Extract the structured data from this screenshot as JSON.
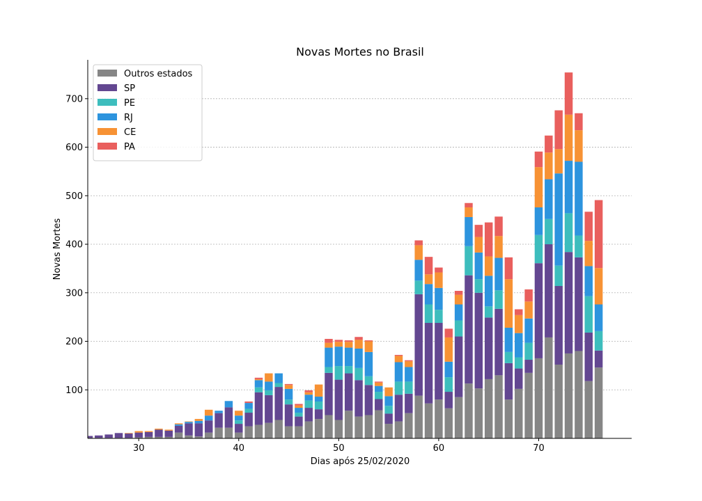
{
  "chart_data": {
    "type": "bar",
    "stacked": true,
    "title": "Novas Mortes no Brasil",
    "xlabel": "Dias após 25/02/2020",
    "ylabel": "Novas Mortes",
    "xlim": [
      24.9,
      79.3
    ],
    "ylim": [
      0,
      780
    ],
    "xticks": [
      30,
      40,
      50,
      60,
      70
    ],
    "yticks": [
      100,
      200,
      300,
      400,
      500,
      600,
      700
    ],
    "grid": "y",
    "legend_position": "top-left",
    "x": [
      25,
      26,
      27,
      28,
      29,
      30,
      31,
      32,
      33,
      34,
      35,
      36,
      37,
      38,
      39,
      40,
      41,
      42,
      43,
      44,
      45,
      46,
      47,
      48,
      49,
      50,
      51,
      52,
      53,
      54,
      55,
      56,
      57,
      58,
      59,
      60,
      61,
      62,
      63,
      64,
      65,
      66,
      67,
      68,
      69,
      70,
      71,
      72,
      73,
      74,
      75,
      76
    ],
    "series": [
      {
        "name": "Outros estados",
        "color": "#868686",
        "values": [
          1,
          1,
          1,
          1,
          1,
          2,
          3,
          3,
          3,
          12,
          6,
          4,
          12,
          22,
          22,
          12,
          25,
          28,
          32,
          38,
          25,
          25,
          35,
          40,
          48,
          38,
          57,
          45,
          48,
          58,
          30,
          35,
          52,
          88,
          72,
          80,
          62,
          85,
          113,
          103,
          122,
          130,
          80,
          102,
          135,
          165,
          208,
          152,
          175,
          180,
          118,
          146
        ]
      },
      {
        "name": "SP",
        "color": "#634791",
        "values": [
          4,
          5,
          7,
          10,
          9,
          10,
          10,
          15,
          13,
          14,
          25,
          27,
          25,
          30,
          42,
          18,
          28,
          67,
          57,
          68,
          45,
          20,
          28,
          20,
          87,
          83,
          77,
          75,
          62,
          23,
          21,
          55,
          40,
          209,
          166,
          158,
          34,
          125,
          223,
          197,
          127,
          137,
          75,
          42,
          27,
          196,
          192,
          162,
          209,
          193,
          100,
          35
        ]
      },
      {
        "name": "PE",
        "color": "#3dbdbd",
        "values": [
          0,
          0,
          0,
          0,
          0,
          0,
          0,
          0,
          0,
          0,
          0,
          0,
          0,
          0,
          0,
          7,
          8,
          10,
          10,
          8,
          10,
          8,
          15,
          16,
          12,
          28,
          15,
          25,
          18,
          15,
          16,
          27,
          25,
          28,
          38,
          27,
          30,
          33,
          60,
          28,
          23,
          38,
          23,
          23,
          35,
          58,
          52,
          42,
          80,
          45,
          75,
          40
        ]
      },
      {
        "name": "RJ",
        "color": "#2d94de",
        "values": [
          0,
          0,
          0,
          0,
          0,
          0,
          0,
          0,
          0,
          3,
          3,
          5,
          10,
          5,
          13,
          10,
          12,
          15,
          18,
          20,
          22,
          10,
          12,
          10,
          40,
          40,
          38,
          40,
          50,
          12,
          20,
          40,
          30,
          43,
          42,
          45,
          32,
          33,
          60,
          55,
          63,
          67,
          50,
          50,
          50,
          57,
          82,
          190,
          108,
          152,
          62,
          55
        ]
      },
      {
        "name": "CE",
        "color": "#f79234",
        "values": [
          0,
          0,
          0,
          0,
          1,
          3,
          2,
          2,
          2,
          2,
          1,
          4,
          12,
          0,
          0,
          10,
          0,
          2,
          17,
          0,
          8,
          5,
          5,
          25,
          10,
          10,
          12,
          18,
          22,
          7,
          18,
          13,
          12,
          30,
          20,
          32,
          50,
          20,
          20,
          32,
          40,
          45,
          100,
          37,
          35,
          83,
          55,
          50,
          95,
          65,
          52,
          75
        ]
      },
      {
        "name": "PA",
        "color": "#e95f5d",
        "values": [
          0,
          0,
          0,
          0,
          0,
          0,
          0,
          0,
          0,
          0,
          0,
          0,
          0,
          0,
          0,
          0,
          3,
          3,
          0,
          0,
          2,
          3,
          4,
          0,
          8,
          4,
          3,
          6,
          2,
          2,
          0,
          2,
          2,
          10,
          36,
          10,
          18,
          8,
          9,
          25,
          70,
          40,
          45,
          12,
          25,
          32,
          35,
          80,
          87,
          35,
          60,
          140
        ]
      }
    ]
  }
}
